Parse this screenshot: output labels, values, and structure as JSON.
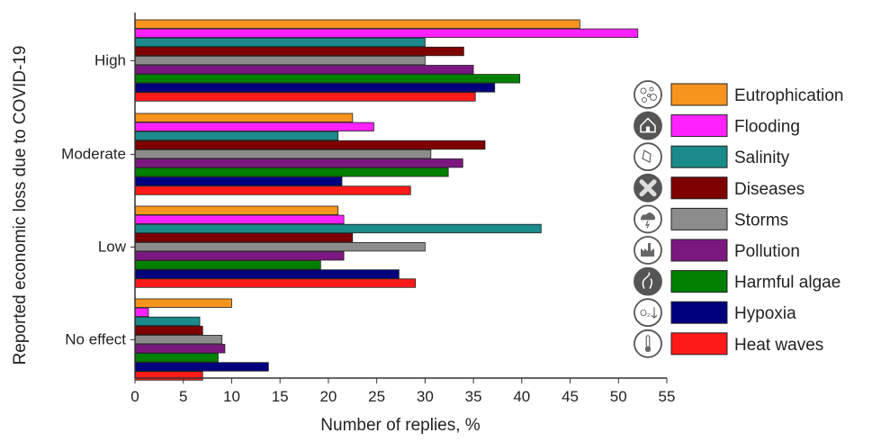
{
  "chart_data": {
    "type": "bar",
    "orientation": "horizontal",
    "xlabel": "Number of replies, %",
    "ylabel": "Reported economic loss due to COVID-19",
    "xlim": [
      0,
      55
    ],
    "xticks": [
      0,
      5,
      10,
      15,
      20,
      25,
      30,
      35,
      40,
      45,
      50,
      55
    ],
    "categories": [
      "High",
      "Moderate",
      "Low",
      "No effect"
    ],
    "legend_position": "right",
    "grid": false,
    "series": [
      {
        "name": "Eutrophication",
        "color": "#F7941D",
        "icon": "microbe-icon",
        "values": [
          46,
          22.5,
          21,
          10
        ]
      },
      {
        "name": "Flooding",
        "color": "#FF22FF",
        "icon": "flooded-house-icon",
        "values": [
          52,
          24.7,
          21.6,
          1.4
        ]
      },
      {
        "name": "Salinity",
        "color": "#1A8A8A",
        "icon": "salt-shaker-icon",
        "values": [
          30,
          21,
          42,
          6.7
        ]
      },
      {
        "name": "Diseases",
        "color": "#7F0000",
        "icon": "virus-cross-icon",
        "values": [
          34,
          36.2,
          22.5,
          7
        ]
      },
      {
        "name": "Storms",
        "color": "#8C8C8C",
        "icon": "storm-cloud-icon",
        "values": [
          30,
          30.6,
          30,
          9
        ]
      },
      {
        "name": "Pollution",
        "color": "#7B1880",
        "icon": "factory-icon",
        "values": [
          35,
          33.9,
          21.6,
          9.3
        ]
      },
      {
        "name": "Harmful algae",
        "color": "#008000",
        "icon": "algae-icon",
        "values": [
          39.8,
          32.4,
          19.2,
          8.6
        ]
      },
      {
        "name": "Hypoxia",
        "color": "#00007F",
        "icon": "oxygen-down-icon",
        "values": [
          37.2,
          21.4,
          27.3,
          13.8
        ]
      },
      {
        "name": "Heat waves",
        "color": "#FF1A1A",
        "icon": "thermometer-icon",
        "values": [
          35.2,
          28.5,
          29,
          7
        ]
      }
    ]
  }
}
